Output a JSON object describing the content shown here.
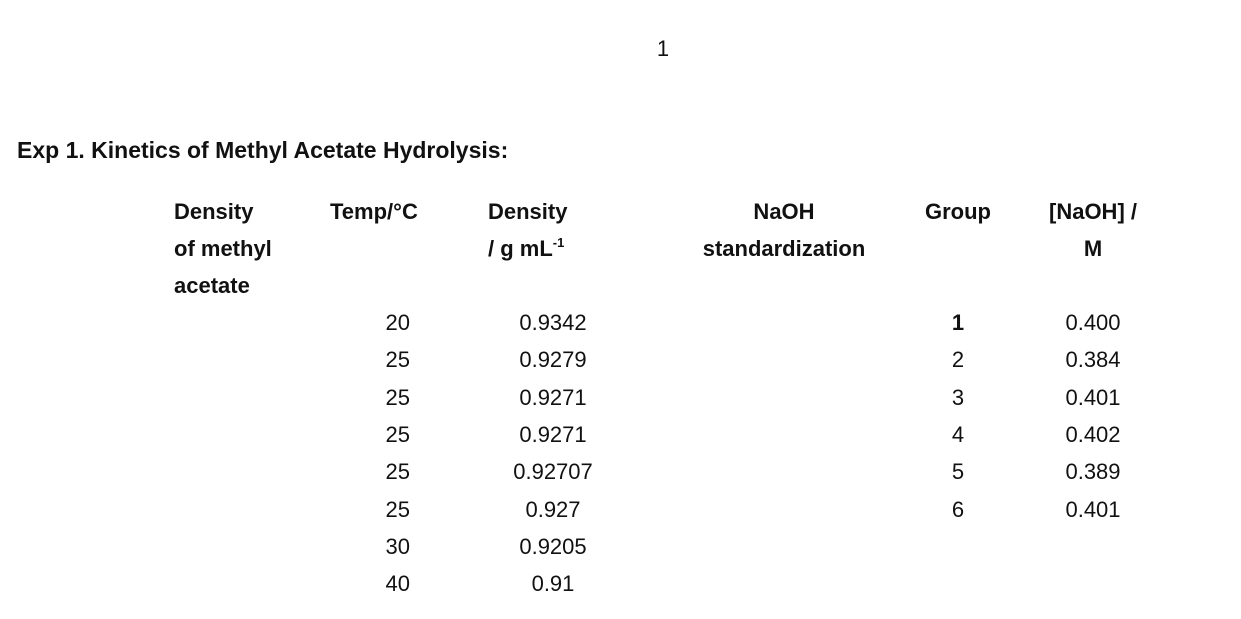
{
  "page_number": "1",
  "heading": "Exp 1. Kinetics of Methyl Acetate Hydrolysis:",
  "density_table": {
    "label_lines": [
      "Density",
      "of methyl",
      "acetate"
    ],
    "temp_header": "Temp/°C",
    "density_header_lines": [
      "Density",
      "/ g mL"
    ],
    "density_header_sup": "-1",
    "rows": [
      [
        "20",
        "0.9342"
      ],
      [
        "25",
        "0.9279"
      ],
      [
        "25",
        "0.9271"
      ],
      [
        "25",
        "0.9271"
      ],
      [
        "25",
        "0.92707"
      ],
      [
        "25",
        "0.927"
      ],
      [
        "30",
        "0.9205"
      ],
      [
        "40",
        "0.91"
      ]
    ]
  },
  "naoh_table": {
    "label_lines": [
      "NaOH",
      "standardization"
    ],
    "group_header": "Group",
    "conc_header_lines": [
      "[NaOH] /",
      "M"
    ],
    "rows": [
      [
        "1",
        "0.400"
      ],
      [
        "2",
        "0.384"
      ],
      [
        "3",
        "0.401"
      ],
      [
        "4",
        "0.402"
      ],
      [
        "5",
        "0.389"
      ],
      [
        "6",
        "0.401"
      ]
    ]
  }
}
